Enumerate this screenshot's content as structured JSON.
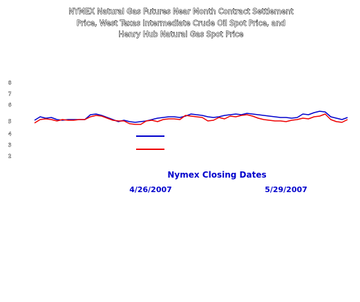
{
  "chart_data": {
    "type": "line",
    "title_lines": [
      "NYMEX Natural Gas Futures Near Month Contract Settlement",
      "Price, West Texas Intermediate Crude Oil Spot Price, and",
      "Henry Hub Natural Gas Spot Price"
    ],
    "xlabel": "Nymex Closing Dates",
    "x_tick_labels": [
      "4/26/2007",
      "5/29/2007"
    ],
    "y_tick_labels": [
      "8",
      "7",
      "6",
      "5",
      "4",
      "3",
      "2"
    ],
    "legend": {
      "placement": "below-plot",
      "entries": [
        {
          "name": "",
          "color": "#0000cc"
        },
        {
          "name": "",
          "color": "#ee0000"
        }
      ]
    },
    "grid": false,
    "ylim": [
      2,
      8
    ],
    "series": [
      {
        "name": "",
        "color": "#0000cc",
        "values": [
          5.55,
          5.8,
          5.7,
          5.75,
          5.6,
          5.55,
          5.6,
          5.6,
          5.6,
          5.6,
          5.95,
          6.0,
          5.9,
          5.75,
          5.6,
          5.45,
          5.55,
          5.45,
          5.4,
          5.45,
          5.5,
          5.6,
          5.7,
          5.75,
          5.8,
          5.8,
          5.75,
          5.85,
          6.0,
          5.95,
          5.9,
          5.8,
          5.75,
          5.8,
          5.9,
          5.95,
          6.0,
          5.95,
          6.05,
          6.0,
          5.95,
          5.9,
          5.85,
          5.8,
          5.75,
          5.75,
          5.7,
          5.75,
          6.0,
          5.95,
          6.1,
          6.2,
          6.15,
          5.8,
          5.7,
          5.6,
          5.75
        ]
      },
      {
        "name": "",
        "color": "#ee0000",
        "values": [
          5.35,
          5.6,
          5.65,
          5.6,
          5.5,
          5.6,
          5.55,
          5.55,
          5.6,
          5.6,
          5.8,
          5.9,
          5.85,
          5.7,
          5.55,
          5.5,
          5.5,
          5.3,
          5.25,
          5.25,
          5.5,
          5.55,
          5.45,
          5.6,
          5.65,
          5.65,
          5.6,
          5.9,
          5.85,
          5.8,
          5.75,
          5.5,
          5.55,
          5.75,
          5.65,
          5.85,
          5.8,
          5.9,
          5.95,
          5.85,
          5.7,
          5.6,
          5.55,
          5.5,
          5.5,
          5.45,
          5.55,
          5.6,
          5.7,
          5.65,
          5.8,
          5.85,
          6.0,
          5.6,
          5.45,
          5.4,
          5.6
        ]
      }
    ]
  }
}
